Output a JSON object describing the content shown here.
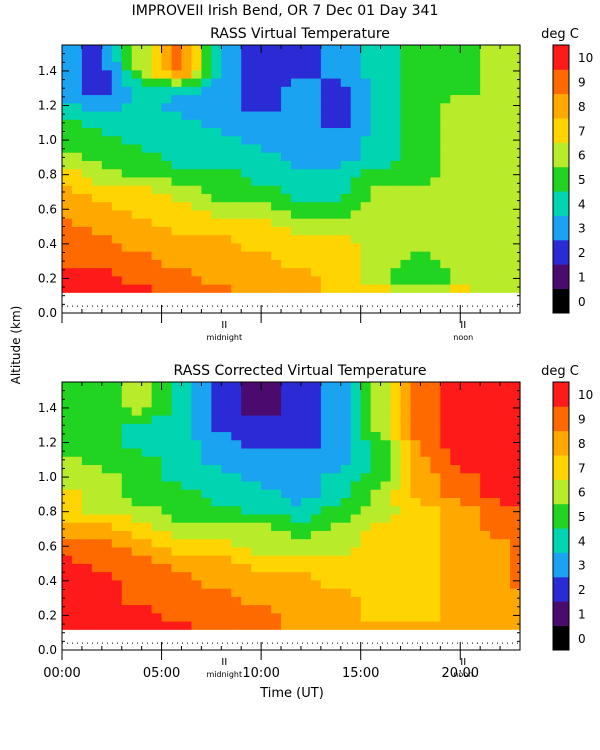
{
  "figure": {
    "header": "IMPROVEII  Irish Bend, OR    7 Dec 01 Day 341",
    "ylabel": "Altitude (km)",
    "xlabel": "Time (UT)",
    "x_ticks": [
      "00:00",
      "05:00",
      "10:00",
      "15:00",
      "20:00"
    ],
    "markers": [
      "midnight",
      "noon"
    ]
  },
  "chart_data": [
    {
      "type": "heatmap",
      "title": "RASS Virtual Temperature",
      "colorbar_label": "deg C",
      "colorbar_ticks": [
        "0",
        "1",
        "2",
        "3",
        "4",
        "5",
        "6",
        "7",
        "8",
        "9",
        "10"
      ],
      "colors": [
        "#000000",
        "#4b0a6e",
        "#2b2bd6",
        "#1aa3f0",
        "#00d4b0",
        "#22d422",
        "#b8ec2a",
        "#ffd400",
        "#ffa800",
        "#ff6a00",
        "#ff1a1a"
      ],
      "x_range_hours": [
        0,
        23
      ],
      "y_ticks": [
        "0.0",
        "0.2",
        "0.4",
        "0.6",
        "0.8",
        "1.0",
        "1.2",
        "1.4"
      ],
      "ylim": [
        0.0,
        1.55
      ],
      "data_ymin": 0.12,
      "times_hours": [
        0,
        2,
        4,
        6,
        8,
        10,
        12,
        14,
        16,
        18,
        20,
        22,
        23
      ],
      "altitudes_km": [
        0.12,
        0.2,
        0.3,
        0.4,
        0.5,
        0.6,
        0.7,
        0.8,
        0.9,
        1.0,
        1.1,
        1.2,
        1.3,
        1.4,
        1.55
      ],
      "values": [
        [
          10,
          10,
          10,
          9,
          9,
          8,
          8,
          7,
          7,
          7,
          7,
          6,
          6
        ],
        [
          10,
          10,
          9,
          9,
          8,
          8,
          8,
          7,
          6,
          4,
          6,
          6,
          6
        ],
        [
          9,
          9,
          9,
          8,
          8,
          8,
          7,
          7,
          6,
          5,
          6,
          6,
          6
        ],
        [
          9,
          9,
          8,
          8,
          8,
          7,
          7,
          7,
          6,
          6,
          6,
          6,
          6
        ],
        [
          9,
          8,
          8,
          7,
          7,
          7,
          6,
          6,
          6,
          6,
          6,
          6,
          6
        ],
        [
          8,
          8,
          7,
          7,
          6,
          6,
          5,
          5,
          6,
          6,
          6,
          6,
          6
        ],
        [
          8,
          7,
          7,
          6,
          5,
          5,
          4,
          4,
          6,
          6,
          6,
          6,
          6
        ],
        [
          7,
          6,
          5,
          5,
          5,
          4,
          4,
          4,
          5,
          5,
          6,
          6,
          6
        ],
        [
          6,
          5,
          5,
          4,
          4,
          4,
          3,
          3,
          4,
          5,
          6,
          6,
          6
        ],
        [
          5,
          5,
          4,
          4,
          4,
          3,
          3,
          3,
          4,
          5,
          6,
          6,
          6
        ],
        [
          5,
          4,
          4,
          4,
          3,
          3,
          3,
          2,
          4,
          5,
          6,
          6,
          6
        ],
        [
          4,
          3,
          4,
          3,
          3,
          2,
          3,
          2,
          4,
          5,
          6,
          6,
          6
        ],
        [
          3,
          2,
          4,
          4,
          3,
          2,
          3,
          2,
          4,
          5,
          5,
          6,
          6
        ],
        [
          3,
          2,
          6,
          9,
          3,
          2,
          2,
          3,
          4,
          5,
          5,
          6,
          6
        ],
        [
          3,
          2,
          6,
          9,
          3,
          2,
          2,
          3,
          4,
          5,
          5,
          6,
          6
        ]
      ]
    },
    {
      "type": "heatmap",
      "title": "RASS Corrected Virtual Temperature",
      "colorbar_label": "deg C",
      "colorbar_ticks": [
        "0",
        "1",
        "2",
        "3",
        "4",
        "5",
        "6",
        "7",
        "8",
        "9",
        "10"
      ],
      "colors": [
        "#000000",
        "#4b0a6e",
        "#2b2bd6",
        "#1aa3f0",
        "#00d4b0",
        "#22d422",
        "#b8ec2a",
        "#ffd400",
        "#ffa800",
        "#ff6a00",
        "#ff1a1a"
      ],
      "x_range_hours": [
        0,
        23
      ],
      "y_ticks": [
        "0.0",
        "0.2",
        "0.4",
        "0.6",
        "0.8",
        "1.0",
        "1.2",
        "1.4"
      ],
      "ylim": [
        0.0,
        1.55
      ],
      "data_ymin": 0.12,
      "times_hours": [
        0,
        2,
        4,
        6,
        8,
        10,
        12,
        14,
        16,
        18,
        20,
        22,
        23
      ],
      "altitudes_km": [
        0.12,
        0.2,
        0.3,
        0.4,
        0.5,
        0.6,
        0.7,
        0.8,
        0.9,
        1.0,
        1.1,
        1.2,
        1.3,
        1.4,
        1.55
      ],
      "values": [
        [
          10,
          10,
          10,
          10,
          9,
          9,
          8,
          8,
          8,
          8,
          8,
          8,
          8
        ],
        [
          10,
          10,
          10,
          9,
          9,
          9,
          8,
          8,
          7,
          7,
          8,
          8,
          8
        ],
        [
          10,
          10,
          9,
          9,
          9,
          8,
          8,
          8,
          7,
          7,
          8,
          8,
          8
        ],
        [
          10,
          10,
          9,
          9,
          8,
          8,
          8,
          7,
          7,
          7,
          8,
          8,
          9
        ],
        [
          10,
          9,
          9,
          8,
          8,
          7,
          7,
          7,
          7,
          7,
          8,
          8,
          9
        ],
        [
          9,
          9,
          8,
          7,
          7,
          6,
          6,
          6,
          7,
          7,
          8,
          8,
          9
        ],
        [
          8,
          8,
          7,
          6,
          6,
          6,
          5,
          6,
          7,
          7,
          8,
          9,
          9
        ],
        [
          7,
          6,
          6,
          5,
          5,
          4,
          4,
          5,
          6,
          7,
          8,
          9,
          9
        ],
        [
          7,
          6,
          5,
          5,
          4,
          4,
          3,
          4,
          6,
          8,
          9,
          10,
          10
        ],
        [
          6,
          6,
          5,
          4,
          4,
          3,
          3,
          4,
          5,
          8,
          9,
          10,
          10
        ],
        [
          6,
          5,
          5,
          4,
          3,
          3,
          3,
          3,
          5,
          8,
          10,
          10,
          10
        ],
        [
          5,
          5,
          4,
          4,
          3,
          2,
          2,
          3,
          5,
          9,
          10,
          10,
          10
        ],
        [
          5,
          5,
          4,
          4,
          2,
          2,
          2,
          3,
          6,
          9,
          10,
          10,
          10
        ],
        [
          5,
          5,
          6,
          4,
          2,
          1,
          2,
          3,
          6,
          9,
          10,
          10,
          10
        ],
        [
          5,
          5,
          6,
          4,
          2,
          1,
          2,
          3,
          6,
          9,
          10,
          10,
          10
        ]
      ]
    }
  ]
}
